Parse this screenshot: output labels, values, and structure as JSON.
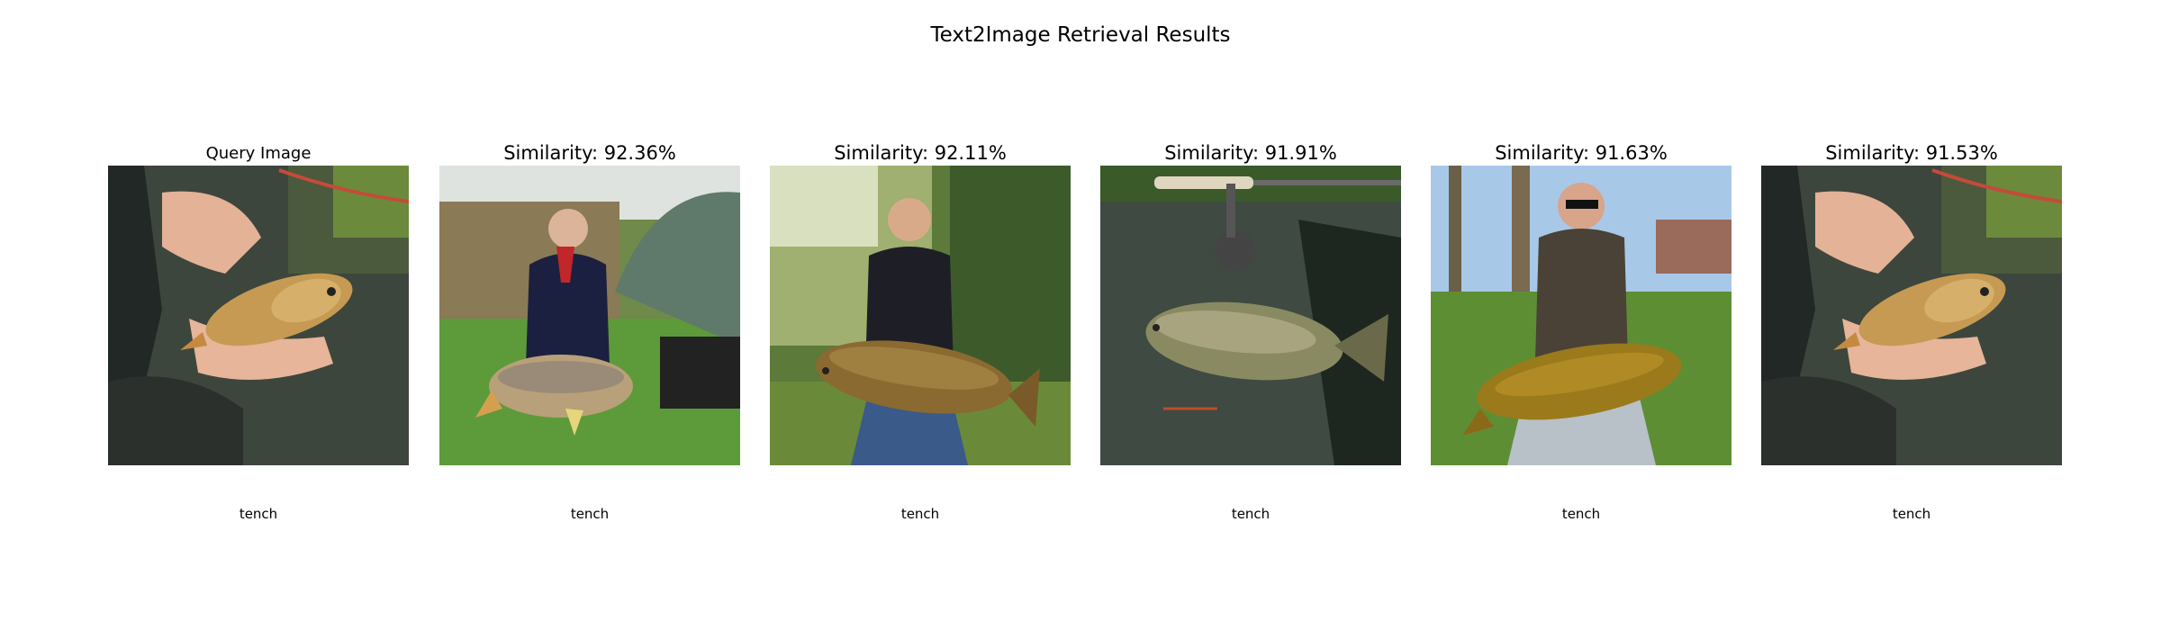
{
  "title": "Text2Image Retrieval Results",
  "panels": [
    {
      "title": "Query Image",
      "label": "tench",
      "scene": "hands-fish"
    },
    {
      "title": "Similarity: 92.36%",
      "label": "tench",
      "scene": "man-umbrella"
    },
    {
      "title": "Similarity: 92.11%",
      "label": "tench",
      "scene": "man-forest"
    },
    {
      "title": "Similarity: 91.91%",
      "label": "tench",
      "scene": "fish-on-mat"
    },
    {
      "title": "Similarity: 91.63%",
      "label": "tench",
      "scene": "man-sunglasses"
    },
    {
      "title": "Similarity: 91.53%",
      "label": "tench",
      "scene": "hands-fish"
    }
  ]
}
